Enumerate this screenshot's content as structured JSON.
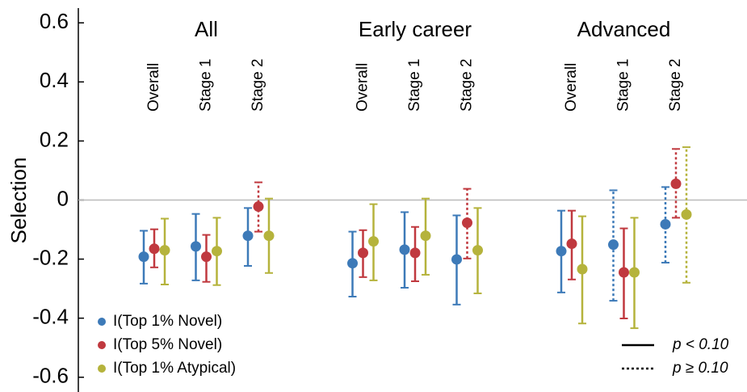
{
  "chart_data": {
    "type": "dot-errorbar",
    "y_label": "Selection",
    "groups": [
      "All",
      "Early career",
      "Advanced"
    ],
    "subgroups": [
      "Overall",
      "Stage 1",
      "Stage 2"
    ],
    "ylim": [
      -0.65,
      0.65
    ],
    "yticks": [
      -0.6,
      -0.4,
      -0.2,
      0,
      0.2,
      0.4,
      0.6
    ],
    "reference_line": 0,
    "series": [
      {
        "name": "I(Top 1% Novel)",
        "color": "#3d7ab8",
        "values": [
          -0.192,
          -0.157,
          -0.121,
          -0.214,
          -0.168,
          -0.201,
          -0.173,
          -0.151,
          -0.082
        ],
        "lower": [
          -0.283,
          -0.272,
          -0.223,
          -0.327,
          -0.297,
          -0.354,
          -0.313,
          -0.341,
          -0.212
        ],
        "upper": [
          -0.104,
          -0.047,
          -0.027,
          -0.107,
          -0.041,
          -0.052,
          -0.036,
          0.033,
          0.044
        ],
        "significant": [
          true,
          true,
          true,
          true,
          true,
          true,
          true,
          false,
          false
        ]
      },
      {
        "name": "I(Top 5% Novel)",
        "color": "#c0393f",
        "values": [
          -0.165,
          -0.192,
          -0.022,
          -0.179,
          -0.179,
          -0.077,
          -0.148,
          -0.245,
          0.055
        ],
        "lower": [
          -0.228,
          -0.277,
          -0.107,
          -0.261,
          -0.275,
          -0.198,
          -0.269,
          -0.401,
          -0.06
        ],
        "upper": [
          -0.099,
          -0.118,
          0.06,
          -0.102,
          -0.091,
          0.038,
          -0.036,
          -0.096,
          0.173
        ],
        "significant": [
          true,
          true,
          false,
          true,
          true,
          false,
          true,
          true,
          false
        ]
      },
      {
        "name": "I(Top 1% Atypical)",
        "color": "#b5b33c",
        "values": [
          -0.17,
          -0.173,
          -0.121,
          -0.14,
          -0.121,
          -0.17,
          -0.234,
          -0.245,
          -0.049
        ],
        "lower": [
          -0.286,
          -0.288,
          -0.247,
          -0.272,
          -0.253,
          -0.316,
          -0.418,
          -0.434,
          -0.28
        ],
        "upper": [
          -0.063,
          -0.06,
          0.005,
          -0.014,
          0.005,
          -0.027,
          -0.055,
          -0.06,
          0.179
        ],
        "significant": [
          true,
          true,
          true,
          true,
          true,
          true,
          true,
          true,
          false
        ]
      }
    ],
    "line_styles": [
      {
        "label": "p < 0.10",
        "dashed": false
      },
      {
        "label": "p ≥ 0.10",
        "dashed": true
      }
    ]
  }
}
